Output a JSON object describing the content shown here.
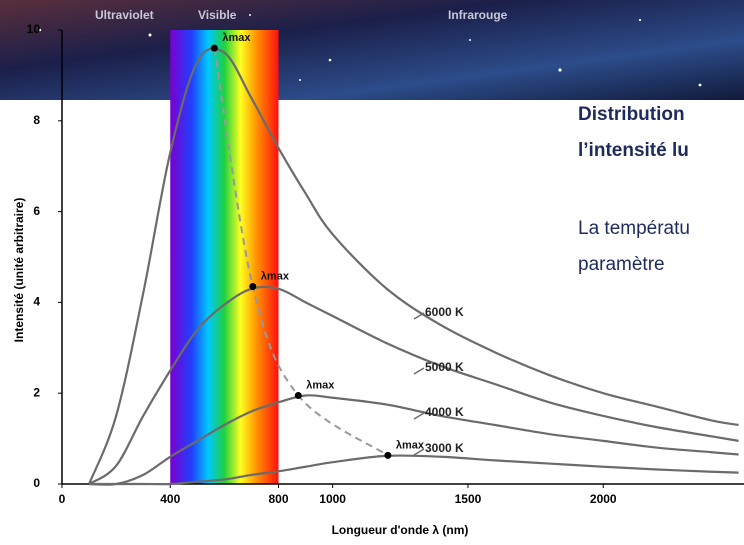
{
  "slide": {
    "heading": [
      "Distribution",
      "l’intensité lu"
    ],
    "body": [
      "La températu",
      "paramètre"
    ]
  },
  "chart_data": {
    "type": "line",
    "xlabel": "Longueur d'onde λ (nm)",
    "ylabel": "Intensité (unité arbitraire)",
    "x": [
      100,
      200,
      300,
      400,
      500,
      600,
      700,
      800,
      900,
      1000,
      1200,
      1400,
      1600,
      1800,
      2000,
      2200,
      2400,
      2500
    ],
    "series": [
      {
        "name": "6000 K",
        "color": "#6b6b6b",
        "values": [
          0,
          1.5,
          4.2,
          7.3,
          9.3,
          9.5,
          8.5,
          7.4,
          6.4,
          5.5,
          4.3,
          3.5,
          2.9,
          2.4,
          2.0,
          1.7,
          1.4,
          1.3
        ]
      },
      {
        "name": "5000 K",
        "color": "#6b6b6b",
        "values": [
          0,
          0.4,
          1.5,
          2.5,
          3.4,
          3.95,
          4.3,
          4.3,
          4.0,
          3.7,
          3.1,
          2.6,
          2.2,
          1.8,
          1.5,
          1.25,
          1.05,
          0.95
        ]
      },
      {
        "name": "4000 K",
        "color": "#6b6b6b",
        "values": [
          0,
          0,
          0.2,
          0.6,
          0.95,
          1.3,
          1.6,
          1.8,
          1.95,
          1.9,
          1.75,
          1.5,
          1.3,
          1.1,
          0.95,
          0.8,
          0.7,
          0.65
        ]
      },
      {
        "name": "3000 K",
        "color": "#6b6b6b",
        "values": [
          0,
          0,
          0,
          0,
          0.05,
          0.1,
          0.2,
          0.28,
          0.38,
          0.48,
          0.62,
          0.6,
          0.52,
          0.45,
          0.38,
          0.32,
          0.27,
          0.25
        ]
      }
    ],
    "peaks": {
      "label": "λmax",
      "color": "#999999",
      "x": [
        563,
        705,
        873,
        1204
      ],
      "y": [
        9.6,
        4.35,
        1.95,
        0.63
      ]
    },
    "spectrum_band": [
      400,
      800
    ],
    "regions": [
      "Ultraviolet",
      "Visible",
      "Infrarouge"
    ],
    "xlim": [
      0,
      2520
    ],
    "ylim": [
      0,
      10
    ],
    "xticks": [
      0,
      400,
      800,
      1000,
      1500,
      2000
    ],
    "yticks": [
      0,
      2,
      4,
      6,
      8,
      10
    ]
  }
}
